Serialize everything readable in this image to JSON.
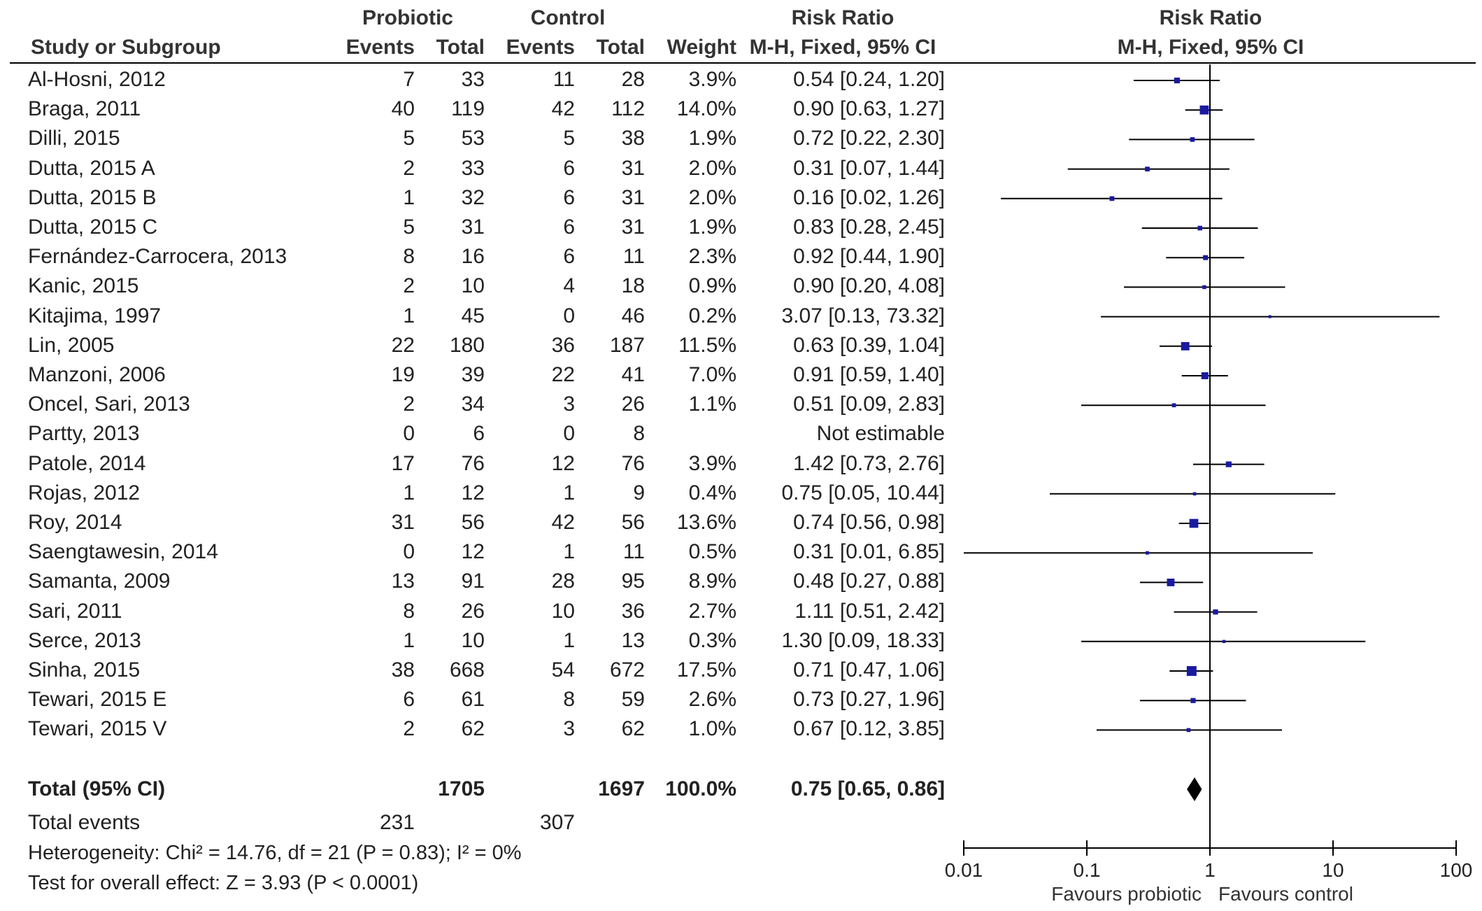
{
  "chart_data": {
    "type": "forest",
    "header": {
      "study_col": "Study or Subgroup",
      "group1": "Probiotic",
      "group2": "Control",
      "events": "Events",
      "total": "Total",
      "weight": "Weight",
      "rr_title": "Risk Ratio",
      "rr_method": "M-H, Fixed, 95% CI",
      "plot_title": "Risk Ratio",
      "plot_method": "M-H, Fixed, 95% CI"
    },
    "studies": [
      {
        "study": "Al-Hosni, 2012",
        "e1": "7",
        "t1": "33",
        "e2": "11",
        "t2": "28",
        "weight": "3.9%",
        "ci_text": "0.54 [0.24, 1.20]",
        "rr": 0.54,
        "lo": 0.24,
        "hi": 1.2,
        "w": 3.9
      },
      {
        "study": "Braga, 2011",
        "e1": "40",
        "t1": "119",
        "e2": "42",
        "t2": "112",
        "weight": "14.0%",
        "ci_text": "0.90 [0.63, 1.27]",
        "rr": 0.9,
        "lo": 0.63,
        "hi": 1.27,
        "w": 14.0
      },
      {
        "study": "Dilli, 2015",
        "e1": "5",
        "t1": "53",
        "e2": "5",
        "t2": "38",
        "weight": "1.9%",
        "ci_text": "0.72 [0.22, 2.30]",
        "rr": 0.72,
        "lo": 0.22,
        "hi": 2.3,
        "w": 1.9
      },
      {
        "study": "Dutta, 2015 A",
        "e1": "2",
        "t1": "33",
        "e2": "6",
        "t2": "31",
        "weight": "2.0%",
        "ci_text": "0.31 [0.07, 1.44]",
        "rr": 0.31,
        "lo": 0.07,
        "hi": 1.44,
        "w": 2.0
      },
      {
        "study": "Dutta, 2015 B",
        "e1": "1",
        "t1": "32",
        "e2": "6",
        "t2": "31",
        "weight": "2.0%",
        "ci_text": "0.16 [0.02, 1.26]",
        "rr": 0.16,
        "lo": 0.02,
        "hi": 1.26,
        "w": 2.0
      },
      {
        "study": "Dutta, 2015 C",
        "e1": "5",
        "t1": "31",
        "e2": "6",
        "t2": "31",
        "weight": "1.9%",
        "ci_text": "0.83 [0.28, 2.45]",
        "rr": 0.83,
        "lo": 0.28,
        "hi": 2.45,
        "w": 1.9
      },
      {
        "study": "Fernández-Carrocera, 2013",
        "e1": "8",
        "t1": "16",
        "e2": "6",
        "t2": "11",
        "weight": "2.3%",
        "ci_text": "0.92 [0.44, 1.90]",
        "rr": 0.92,
        "lo": 0.44,
        "hi": 1.9,
        "w": 2.3
      },
      {
        "study": "Kanic, 2015",
        "e1": "2",
        "t1": "10",
        "e2": "4",
        "t2": "18",
        "weight": "0.9%",
        "ci_text": "0.90 [0.20, 4.08]",
        "rr": 0.9,
        "lo": 0.2,
        "hi": 4.08,
        "w": 0.9
      },
      {
        "study": "Kitajima, 1997",
        "e1": "1",
        "t1": "45",
        "e2": "0",
        "t2": "46",
        "weight": "0.2%",
        "ci_text": "3.07 [0.13, 73.32]",
        "rr": 3.07,
        "lo": 0.13,
        "hi": 73.32,
        "w": 0.2
      },
      {
        "study": "Lin, 2005",
        "e1": "22",
        "t1": "180",
        "e2": "36",
        "t2": "187",
        "weight": "11.5%",
        "ci_text": "0.63 [0.39, 1.04]",
        "rr": 0.63,
        "lo": 0.39,
        "hi": 1.04,
        "w": 11.5
      },
      {
        "study": "Manzoni, 2006",
        "e1": "19",
        "t1": "39",
        "e2": "22",
        "t2": "41",
        "weight": "7.0%",
        "ci_text": "0.91 [0.59, 1.40]",
        "rr": 0.91,
        "lo": 0.59,
        "hi": 1.4,
        "w": 7.0
      },
      {
        "study": "Oncel, Sari, 2013",
        "e1": "2",
        "t1": "34",
        "e2": "3",
        "t2": "26",
        "weight": "1.1%",
        "ci_text": "0.51 [0.09, 2.83]",
        "rr": 0.51,
        "lo": 0.09,
        "hi": 2.83,
        "w": 1.1
      },
      {
        "study": "Partty, 2013",
        "e1": "0",
        "t1": "6",
        "e2": "0",
        "t2": "8",
        "weight": "",
        "ci_text": "Not estimable",
        "rr": null,
        "lo": null,
        "hi": null,
        "w": 0
      },
      {
        "study": "Patole, 2014",
        "e1": "17",
        "t1": "76",
        "e2": "12",
        "t2": "76",
        "weight": "3.9%",
        "ci_text": "1.42 [0.73, 2.76]",
        "rr": 1.42,
        "lo": 0.73,
        "hi": 2.76,
        "w": 3.9
      },
      {
        "study": "Rojas, 2012",
        "e1": "1",
        "t1": "12",
        "e2": "1",
        "t2": "9",
        "weight": "0.4%",
        "ci_text": "0.75 [0.05, 10.44]",
        "rr": 0.75,
        "lo": 0.05,
        "hi": 10.44,
        "w": 0.4
      },
      {
        "study": "Roy, 2014",
        "e1": "31",
        "t1": "56",
        "e2": "42",
        "t2": "56",
        "weight": "13.6%",
        "ci_text": "0.74 [0.56, 0.98]",
        "rr": 0.74,
        "lo": 0.56,
        "hi": 0.98,
        "w": 13.6
      },
      {
        "study": "Saengtawesin, 2014",
        "e1": "0",
        "t1": "12",
        "e2": "1",
        "t2": "11",
        "weight": "0.5%",
        "ci_text": "0.31 [0.01, 6.85]",
        "rr": 0.31,
        "lo": 0.01,
        "hi": 6.85,
        "w": 0.5
      },
      {
        "study": "Samanta, 2009",
        "e1": "13",
        "t1": "91",
        "e2": "28",
        "t2": "95",
        "weight": "8.9%",
        "ci_text": "0.48 [0.27, 0.88]",
        "rr": 0.48,
        "lo": 0.27,
        "hi": 0.88,
        "w": 8.9
      },
      {
        "study": "Sari, 2011",
        "e1": "8",
        "t1": "26",
        "e2": "10",
        "t2": "36",
        "weight": "2.7%",
        "ci_text": "1.11 [0.51, 2.42]",
        "rr": 1.11,
        "lo": 0.51,
        "hi": 2.42,
        "w": 2.7
      },
      {
        "study": "Serce, 2013",
        "e1": "1",
        "t1": "10",
        "e2": "1",
        "t2": "13",
        "weight": "0.3%",
        "ci_text": "1.30 [0.09, 18.33]",
        "rr": 1.3,
        "lo": 0.09,
        "hi": 18.33,
        "w": 0.3
      },
      {
        "study": "Sinha, 2015",
        "e1": "38",
        "t1": "668",
        "e2": "54",
        "t2": "672",
        "weight": "17.5%",
        "ci_text": "0.71 [0.47, 1.06]",
        "rr": 0.71,
        "lo": 0.47,
        "hi": 1.06,
        "w": 17.5
      },
      {
        "study": "Tewari, 2015 E",
        "e1": "6",
        "t1": "61",
        "e2": "8",
        "t2": "59",
        "weight": "2.6%",
        "ci_text": "0.73 [0.27, 1.96]",
        "rr": 0.73,
        "lo": 0.27,
        "hi": 1.96,
        "w": 2.6
      },
      {
        "study": "Tewari, 2015 V",
        "e1": "2",
        "t1": "62",
        "e2": "3",
        "t2": "62",
        "weight": "1.0%",
        "ci_text": "0.67 [0.12, 3.85]",
        "rr": 0.67,
        "lo": 0.12,
        "hi": 3.85,
        "w": 1.0
      }
    ],
    "total": {
      "label": "Total (95% CI)",
      "t1": "1705",
      "t2": "1697",
      "weight": "100.0%",
      "ci_text": "0.75 [0.65, 0.86]",
      "rr": 0.75,
      "lo": 0.65,
      "hi": 0.86
    },
    "total_events": {
      "label": "Total events",
      "e1": "231",
      "e2": "307"
    },
    "heterogeneity": "Heterogeneity: Chi² = 14.76, df = 21 (P = 0.83); I² = 0%",
    "overall_effect": "Test for overall effect: Z = 3.93 (P < 0.0001)",
    "x_axis": {
      "scale": "log",
      "range": [
        0.01,
        100
      ],
      "ticks": [
        0.01,
        0.1,
        1,
        10,
        100
      ],
      "tick_labels": [
        "0.01",
        "0.1",
        "1",
        "10",
        "100"
      ],
      "reference": 1
    },
    "favours_left": "Favours probiotic",
    "favours_right": "Favours control",
    "colors": {
      "text": "#222222",
      "marker": "#1a1aa0",
      "ci_line": "#000000",
      "diamond": "#000000",
      "axis": "#000000"
    }
  }
}
